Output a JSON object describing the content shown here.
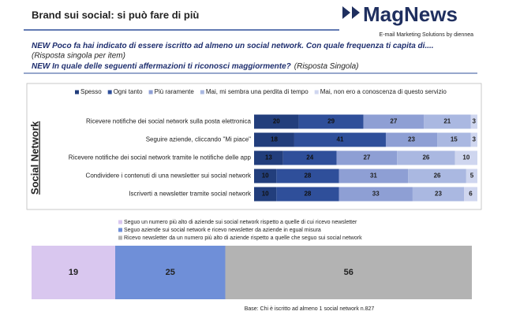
{
  "header": {
    "title": "Brand sui social: si può fare di più",
    "logo": "MagNews",
    "logo_tagline": "E-mail Marketing Solutions by diennea",
    "questions": [
      {
        "text": "NEW Poco fa hai indicato di essere iscritto ad almeno un social network. Con quale frequenza ti capita di....",
        "note": "(Risposta singola per item)"
      },
      {
        "text": "NEW  In quale delle seguenti affermazioni ti riconosci maggiormente?",
        "note": "(Risposta Singola)"
      }
    ],
    "footnote": "Base: Chi è iscritto ad almeno 1 social network  n.827"
  },
  "chart_data": [
    {
      "type": "bar",
      "orientation": "horizontal",
      "stacked": true,
      "y_label": "Social Network",
      "legend": "top",
      "xlim": [
        0,
        100
      ],
      "categories": [
        "Ricevere notifiche dei social network sulla posta elettronica",
        "Seguire aziende, cliccando \"Mi piace\"",
        "Ricevere notifiche dei social network tramite le notifiche delle app",
        "Condividere i contenuti di una newsletter sui social network",
        "Iscriverti a newsletter tramite social network"
      ],
      "series": [
        {
          "name": "Spesso",
          "color": "#223e7c",
          "values": [
            20,
            18,
            13,
            10,
            10
          ]
        },
        {
          "name": "Ogni tanto",
          "color": "#2f4f9a",
          "values": [
            29,
            41,
            24,
            28,
            28
          ]
        },
        {
          "name": "Più raramente",
          "color": "#8e9fd4",
          "values": [
            27,
            23,
            27,
            31,
            33
          ]
        },
        {
          "name": "Mai, mi sembra una perdita di tempo",
          "color": "#aab8e1",
          "values": [
            21,
            15,
            26,
            26,
            23
          ]
        },
        {
          "name": "Mai, non ero a conoscenza di questo servizio",
          "color": "#cfd6ef",
          "values": [
            3,
            3,
            10,
            5,
            6
          ]
        }
      ]
    },
    {
      "type": "bar",
      "orientation": "horizontal",
      "stacked": true,
      "legend": "top",
      "xlim": [
        0,
        100
      ],
      "categories": [
        null
      ],
      "series": [
        {
          "name": "Seguo un numero più alto di aziende sui social network rispetto a quelle di cui ricevo newsletter",
          "color": "#d9c7ef",
          "values": [
            19
          ]
        },
        {
          "name": "Seguo aziende sui social network e ricevo newsletter da aziende in egual misura",
          "color": "#6f8fd8",
          "values": [
            25
          ]
        },
        {
          "name": "Ricevo newsletter da un numero più alto di aziende rispetto a quelle che seguo sui social network",
          "color": "#b3b3b3",
          "values": [
            56
          ]
        }
      ]
    }
  ]
}
